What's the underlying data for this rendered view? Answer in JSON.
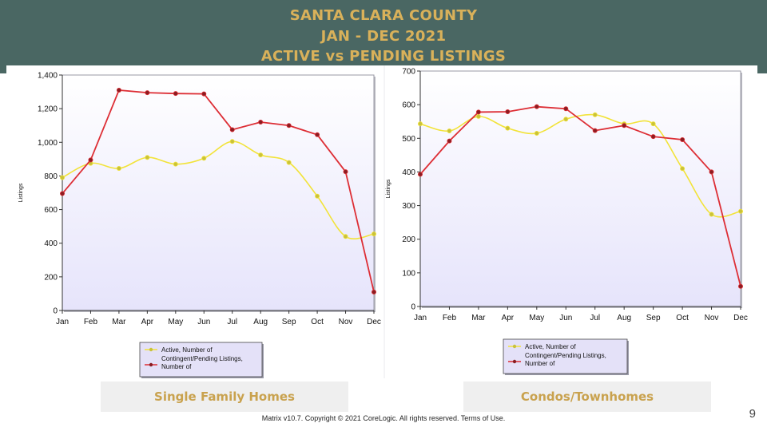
{
  "header": {
    "line1": "SANTA CLARA COUNTY",
    "line2": "JAN - DEC 2021",
    "line3": "ACTIVE vs PENDING LISTINGS"
  },
  "colors": {
    "header_bg": "#4a6763",
    "title_gold": "#d9b15a",
    "active_series": "#f2e33a",
    "pending_series": "#dd2e35",
    "plot_bg_top": "#ffffff",
    "plot_bg_bottom": "#e6e4fb"
  },
  "chart_data": [
    {
      "type": "line",
      "caption": "Single Family Homes",
      "ylabel": "Listings",
      "categories": [
        "Jan",
        "Feb",
        "Mar",
        "Apr",
        "May",
        "Jun",
        "Jul",
        "Aug",
        "Sep",
        "Oct",
        "Nov",
        "Dec"
      ],
      "ylim": [
        0,
        1400
      ],
      "yticks": [
        0,
        200,
        400,
        600,
        800,
        1000,
        1200,
        1400
      ],
      "ytick_labels": [
        "0",
        "200",
        "400",
        "600",
        "800",
        "1,000",
        "1,200",
        "1,400"
      ],
      "legend_position": "bottom-left",
      "series": [
        {
          "name": "Active, Number of",
          "color": "#f2e33a",
          "values": [
            790,
            875,
            845,
            910,
            870,
            905,
            1005,
            925,
            880,
            680,
            440,
            455
          ]
        },
        {
          "name": "Contingent/Pending Listings, Number of",
          "color": "#dd2e35",
          "values": [
            695,
            895,
            1310,
            1295,
            1290,
            1288,
            1075,
            1120,
            1100,
            1045,
            825,
            110
          ]
        }
      ]
    },
    {
      "type": "line",
      "caption": "Condos/Townhomes",
      "ylabel": "Listings",
      "categories": [
        "Jan",
        "Feb",
        "Mar",
        "Apr",
        "May",
        "Jun",
        "Jul",
        "Aug",
        "Sep",
        "Oct",
        "Nov",
        "Dec"
      ],
      "ylim": [
        0,
        700
      ],
      "yticks": [
        0,
        100,
        200,
        300,
        400,
        500,
        600,
        700
      ],
      "ytick_labels": [
        "0",
        "100",
        "200",
        "300",
        "400",
        "500",
        "600",
        "700"
      ],
      "legend_position": "bottom-left",
      "series": [
        {
          "name": "Active, Number of",
          "color": "#f2e33a",
          "values": [
            543,
            522,
            565,
            530,
            515,
            557,
            570,
            543,
            543,
            410,
            274,
            283
          ]
        },
        {
          "name": "Contingent/Pending Listings, Number of",
          "color": "#dd2e35",
          "values": [
            393,
            492,
            578,
            579,
            594,
            588,
            523,
            538,
            505,
            496,
            400,
            60
          ]
        }
      ]
    }
  ],
  "legend": {
    "active_line1": "Active, Number of",
    "pending_line1": "Contingent/Pending Listings,",
    "pending_line2": "Number of"
  },
  "footer": {
    "copyright": "Matrix v10.7. Copyright © 2021 CoreLogic. All rights reserved. Terms of Use."
  },
  "page_number": "9"
}
